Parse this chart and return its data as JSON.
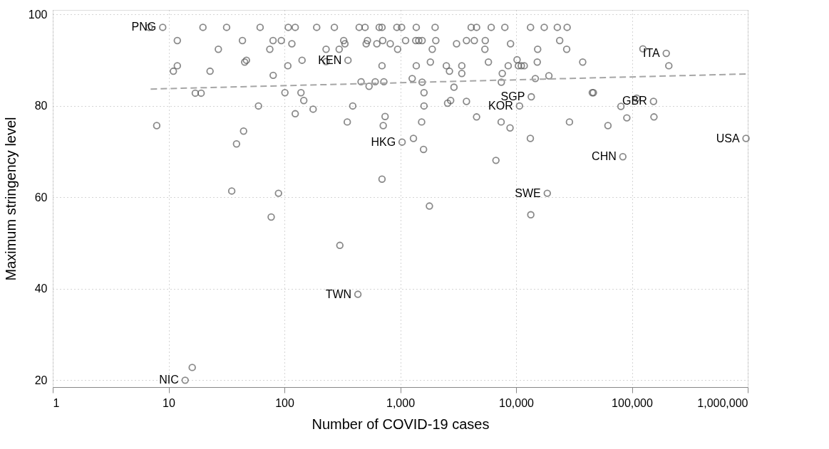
{
  "chart_data": {
    "type": "scatter",
    "xlabel": "Number of COVID-19 cases",
    "ylabel": "Maximum stringency level",
    "log": "x",
    "xlim": [
      1,
      1000000
    ],
    "xticks": [
      1,
      10,
      100,
      {
        "value": 1000,
        "label": "1,000"
      },
      {
        "value": 10000,
        "label": "10,000"
      },
      {
        "value": 100000,
        "label": "100,000"
      },
      {
        "value": 1000000,
        "label": "1,000,000"
      }
    ],
    "ylim": [
      18.5,
      101
    ],
    "yticks": [
      20,
      40,
      60,
      80,
      100
    ],
    "grid": true,
    "series": [
      {
        "marker": "circle",
        "color": "#595959",
        "x": [
          6.8,
          8.9,
          19.8,
          31.7,
          11.9,
          43.4,
          26.9,
          45.4,
          11.9,
          11.0,
          22.8,
          17.0,
          19.1,
          7.9,
          44.4,
          38.6,
          61.7,
          108,
          124,
          190,
          270,
          442,
          497,
          658,
          696,
          935,
          1027,
          1375,
          79.8,
          94,
          325,
          521,
          706,
          1112,
          1361,
          1445,
          1545,
          116,
          333,
          508,
          628,
          820,
          74.8,
          229,
          297,
          949,
          47,
          142,
          354,
          229,
          107,
          696,
          1375,
          80,
          459,
          608,
          722,
          1268,
          1545,
          538,
          101,
          139,
          1604,
          147,
          59.7,
          389,
          1604,
          177,
          124,
          740,
          349,
          1530,
          713,
          1038,
          1300,
          1589,
          696,
          2000,
          4094,
          4560,
          6100,
          8000,
          13330,
          17500,
          22700,
          27600,
          2028,
          3730,
          4360,
          5420,
          23800,
          3063,
          8960,
          1890,
          5380,
          15360,
          27350,
          1820,
          5770,
          15240,
          37600,
          10200,
          2500,
          3400,
          8550,
          10470,
          11100,
          11760,
          2660,
          3400,
          7600,
          19200,
          14660,
          7460,
          2910,
          46500,
          45500,
          13530,
          2724,
          2564,
          3730,
          10700,
          4560,
          7430,
          28900,
          8870,
          13280,
          6700,
          124400,
          198000,
          208300,
          80400,
          110000,
          153600,
          90400,
          155000,
          62100,
          966000,
          83500,
          35.1,
          88.9,
          76.9,
          301,
          431,
          16.0,
          13.9,
          18600,
          13400,
          1786
        ],
        "values": [
          97.2,
          97.2,
          97.2,
          97.2,
          94.3,
          94.3,
          92.4,
          89.6,
          88.8,
          87.6,
          87.6,
          82.8,
          82.8,
          75.7,
          74.5,
          71.7,
          97.2,
          97.2,
          97.2,
          97.2,
          97.2,
          97.2,
          97.2,
          97.2,
          97.2,
          97.2,
          97.2,
          97.2,
          94.3,
          94.3,
          94.3,
          94.3,
          94.3,
          94.3,
          94.3,
          94.3,
          94.3,
          93.6,
          93.6,
          93.6,
          93.6,
          93.6,
          92.4,
          92.4,
          92.4,
          92.4,
          90.0,
          90.0,
          90.0,
          89.7,
          88.8,
          88.8,
          88.8,
          86.7,
          85.3,
          85.3,
          85.3,
          86.0,
          85.2,
          84.3,
          82.9,
          82.9,
          82.9,
          81.2,
          80.0,
          80.0,
          80.0,
          79.3,
          78.3,
          77.7,
          76.5,
          76.5,
          75.7,
          72.1,
          72.9,
          70.5,
          64.0,
          97.2,
          97.2,
          97.2,
          97.2,
          97.2,
          97.2,
          97.2,
          97.2,
          97.2,
          94.3,
          94.3,
          94.3,
          94.3,
          94.3,
          93.6,
          93.6,
          92.4,
          92.4,
          92.4,
          92.4,
          89.6,
          89.6,
          89.6,
          89.6,
          90.1,
          88.8,
          88.8,
          88.8,
          88.8,
          88.8,
          88.8,
          87.6,
          87.1,
          87.1,
          86.6,
          86.0,
          85.2,
          84.1,
          82.9,
          82.9,
          82.0,
          81.2,
          80.6,
          81.0,
          80.0,
          77.6,
          76.5,
          76.5,
          75.2,
          72.9,
          68.1,
          92.5,
          91.5,
          88.8,
          79.9,
          81.7,
          81.0,
          77.4,
          77.6,
          75.7,
          72.9,
          68.9,
          61.4,
          60.9,
          55.7,
          49.5,
          38.8,
          22.8,
          20.0,
          60.9,
          56.2,
          58.1
        ]
      },
      {
        "type": "line",
        "color": "#a6a6a6",
        "line_style": "dashed",
        "x": [
          7,
          1000000
        ],
        "values": [
          83.7,
          87.0
        ]
      }
    ],
    "annotations": [
      {
        "text": "PNG",
        "x": 8.9,
        "y": 97.2
      },
      {
        "text": "KEN",
        "x": 354,
        "y": 90.0
      },
      {
        "text": "HKG",
        "x": 1038,
        "y": 72.1
      },
      {
        "text": "SGP",
        "x": 13530,
        "y": 82.0
      },
      {
        "text": "KOR",
        "x": 10700,
        "y": 80.0
      },
      {
        "text": "ITA",
        "x": 198000,
        "y": 91.5
      },
      {
        "text": "GBR",
        "x": 153600,
        "y": 81.0
      },
      {
        "text": "CHN",
        "x": 83500,
        "y": 68.9
      },
      {
        "text": "USA",
        "x": 966000,
        "y": 72.9
      },
      {
        "text": "SWE",
        "x": 18600,
        "y": 60.9
      },
      {
        "text": "TWN",
        "x": 431,
        "y": 38.8
      },
      {
        "text": "NIC",
        "x": 13.9,
        "y": 20.0
      }
    ]
  }
}
